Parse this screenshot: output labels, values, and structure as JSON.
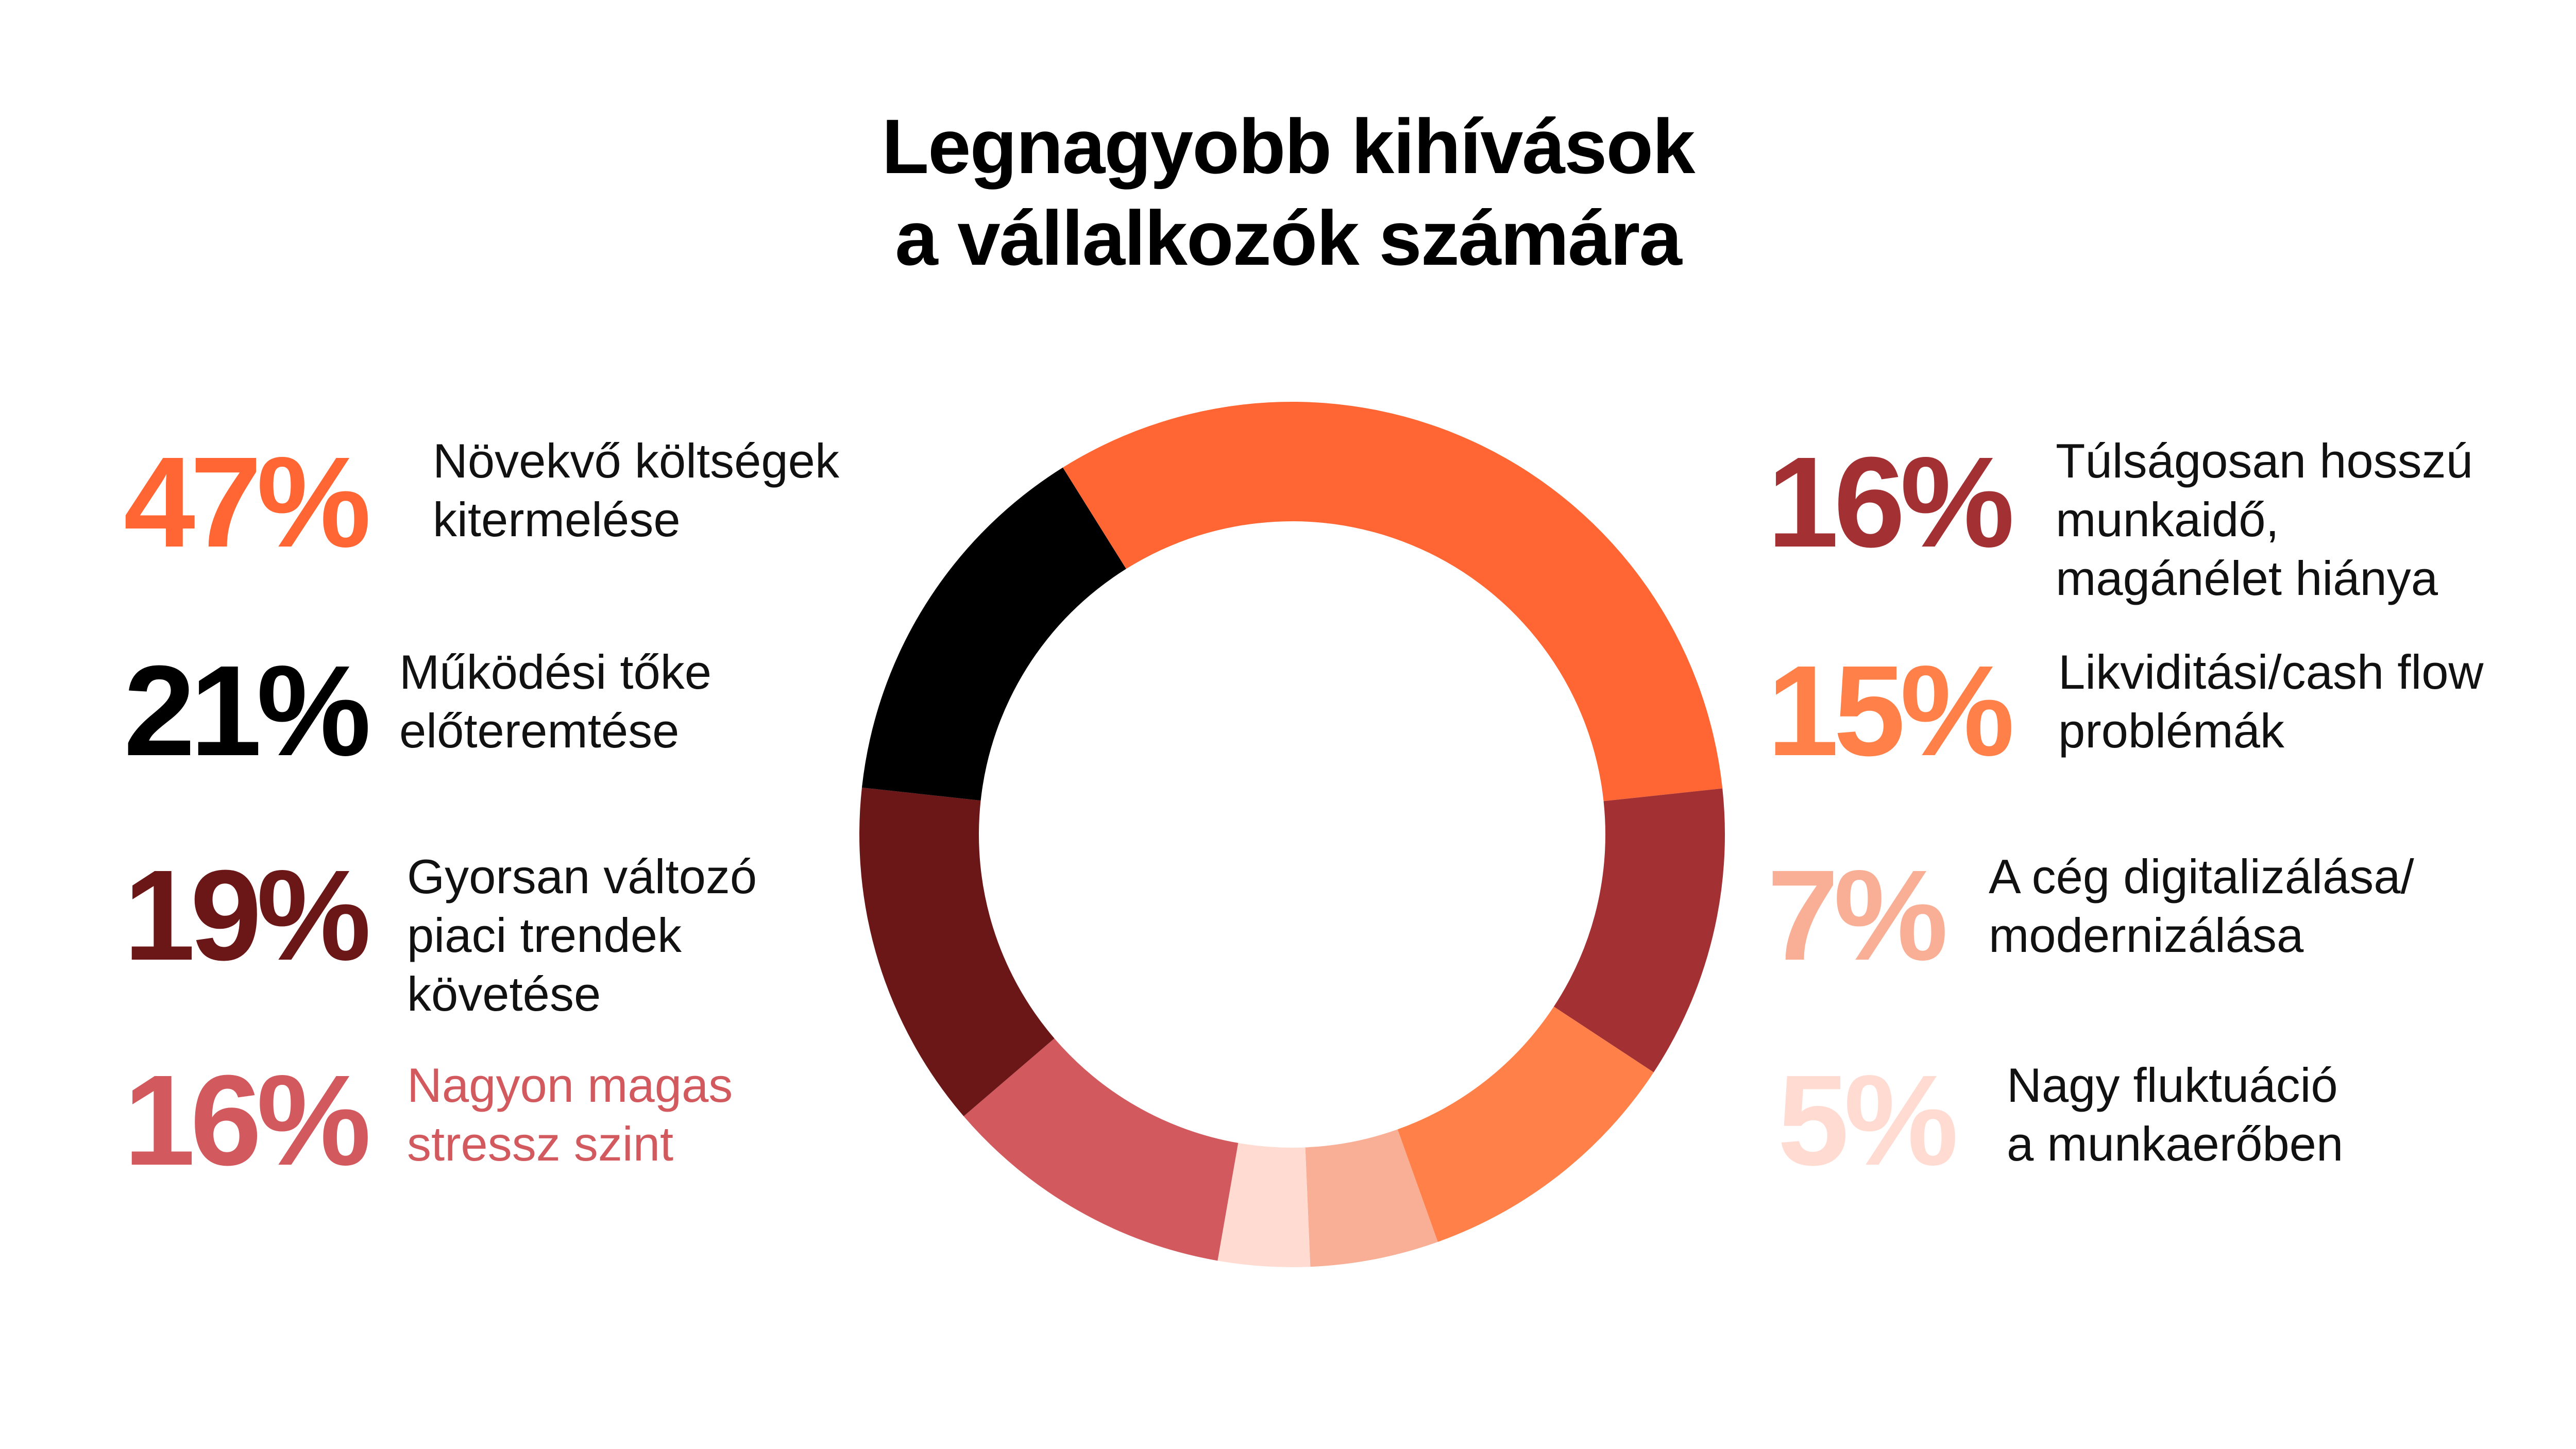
{
  "title": {
    "line1": "Legnagyobb kihívások",
    "line2": "a vállalkozók számára"
  },
  "chart_data": {
    "type": "pie",
    "donut": true,
    "title": "Legnagyobb kihívások a vállalkozók számára",
    "unit": "%",
    "slices": [
      {
        "value": 47,
        "label": "47%",
        "text": [
          "Növekvő költségek",
          "kitermelése"
        ],
        "color": "#FF6633"
      },
      {
        "value": 16,
        "label": "16%",
        "text": [
          "Túlságosan hosszú",
          "munkaidő,",
          "magánélet hiánya"
        ],
        "color": "#A33033"
      },
      {
        "value": 15,
        "label": "15%",
        "text": [
          "Likviditási/cash flow",
          "problémák"
        ],
        "color": "#FF8048"
      },
      {
        "value": 7,
        "label": "7%",
        "text": [
          "A cég digitalizálása/",
          "modernizálása"
        ],
        "color": "#F9AE96"
      },
      {
        "value": 5,
        "label": "5%",
        "text": [
          "Nagy fluktuáció",
          "a munkaerőben"
        ],
        "color": "#FFDBD2"
      },
      {
        "value": 16,
        "label": "16%",
        "text": [
          "Nagyon magas",
          "stressz szint"
        ],
        "color": "#D25A5E",
        "text_color": "#D25A5E"
      },
      {
        "value": 19,
        "label": "19%",
        "text": [
          "Gyorsan változó",
          "piaci trendek",
          "követése"
        ],
        "color": "#6B1717"
      },
      {
        "value": 21,
        "label": "21%",
        "text": [
          "Működési tőke",
          "előteremtése"
        ],
        "color": "#000000"
      }
    ]
  }
}
